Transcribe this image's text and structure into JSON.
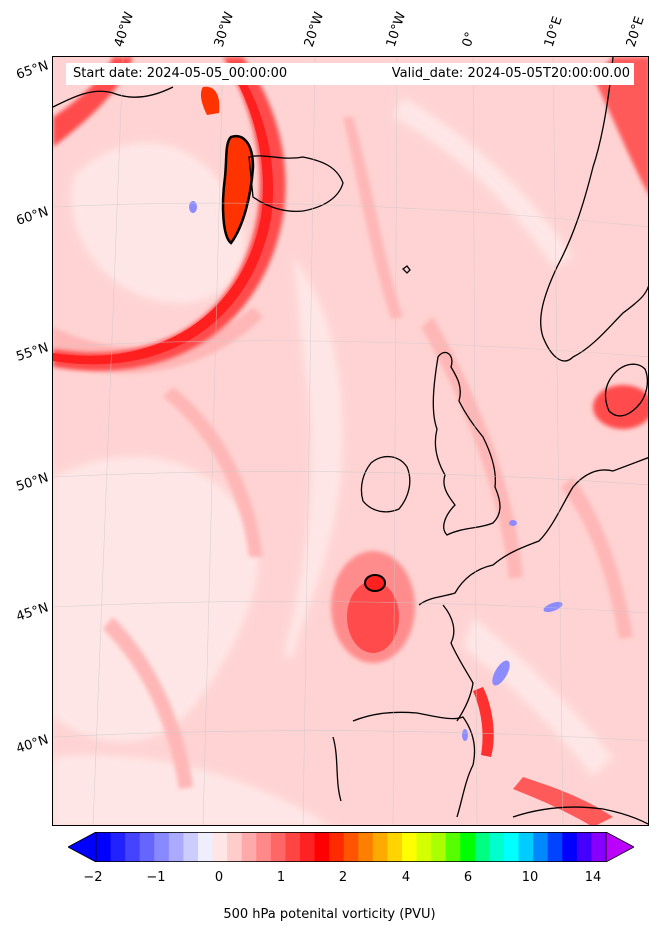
{
  "map": {
    "start_label": "Start date: 2024-05-05_00:00:00",
    "valid_label": "Valid_date: 2024-05-05T20:00:00.00",
    "longitude_labels": [
      "40°W",
      "30°W",
      "20°W",
      "10°W",
      "0°",
      "10°E",
      "20°E"
    ],
    "latitude_labels": [
      "65°N",
      "60°N",
      "55°N",
      "50°N",
      "45°N",
      "40°N"
    ],
    "field": "500 hPa potential vorticity",
    "colors": {
      "background_fill": "#ffd3d3",
      "strong_red": "#ff1f1f",
      "light_pink": "#ffe8e8",
      "blue": "#8c8cff",
      "coast": "#000000"
    }
  },
  "colorbar": {
    "label": "500 hPa potenital vorticity (PVU)",
    "tick_labels": [
      "−2",
      "−1",
      "0",
      "1",
      "2",
      "4",
      "6",
      "10",
      "14"
    ],
    "colors": [
      "#0000ff",
      "#2222ff",
      "#4444ff",
      "#6666ff",
      "#8888ff",
      "#aaaaff",
      "#ccccff",
      "#eeeeff",
      "#ffe6e6",
      "#ffcccc",
      "#ffaaaa",
      "#ff8888",
      "#ff6666",
      "#ff4444",
      "#ff2222",
      "#ff0000",
      "#ff2a00",
      "#ff5500",
      "#ff8000",
      "#ffaa00",
      "#ffd400",
      "#ffff00",
      "#d4ff00",
      "#aaff00",
      "#55ff00",
      "#00ff00",
      "#00ff80",
      "#00ffcc",
      "#00ffff",
      "#00ccff",
      "#0088ff",
      "#0044ff",
      "#0000ff",
      "#4400ff",
      "#8800ff"
    ],
    "extend_low_color": "#0000ff",
    "extend_high_color": "#bb00ff"
  }
}
